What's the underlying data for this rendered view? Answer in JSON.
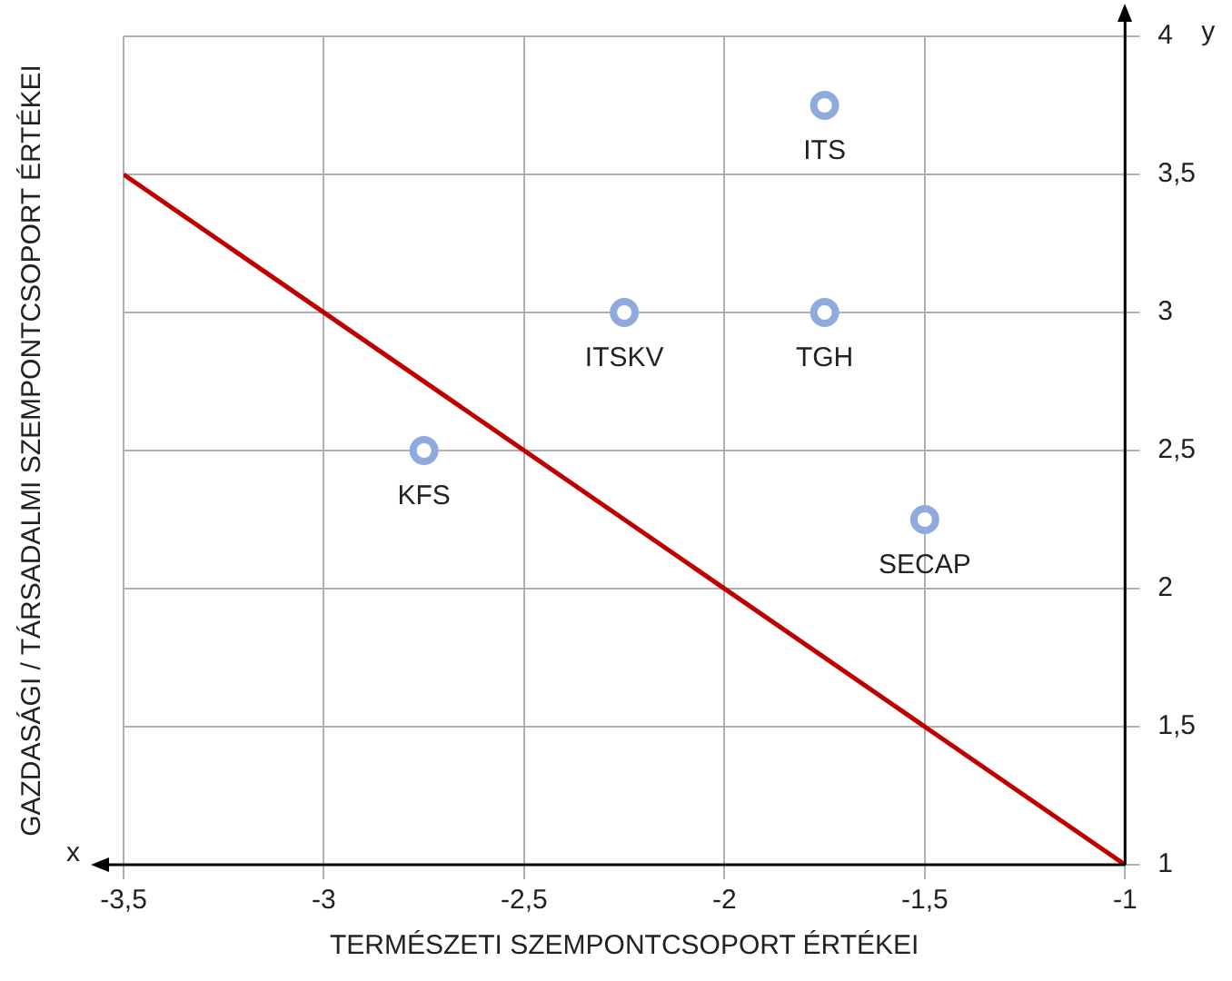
{
  "chart_data": {
    "type": "scatter",
    "xlabel": "TERMÉSZETI SZEMPONTCSOPORT ÉRTÉKEI",
    "ylabel": "GAZDASÁGI / TÁRSADALMI SZEMPONTCSOPORT ÉRTÉKEI",
    "xlim": [
      -3.5,
      -1
    ],
    "ylim": [
      1,
      4
    ],
    "xticks": [
      {
        "value": -3.5,
        "label": "-3,5"
      },
      -3,
      {
        "value": -2.5,
        "label": "-2,5"
      },
      -2,
      {
        "value": -1.5,
        "label": "-1,5"
      },
      -1
    ],
    "yticks": [
      1,
      {
        "value": 1.5,
        "label": "1,5"
      },
      2,
      {
        "value": 2.5,
        "label": "2,5"
      },
      3,
      {
        "value": 3.5,
        "label": "3,5"
      },
      4
    ],
    "grid": true,
    "legend": false,
    "series": [
      {
        "type": "scatter",
        "color": "#8faadc",
        "marker": "circle",
        "x": [
          -1.75,
          -2.25,
          -1.75,
          -2.75,
          -1.5
        ],
        "values": [
          3.75,
          3,
          3,
          2.5,
          2.25
        ]
      },
      {
        "type": "line",
        "color": "#c00000",
        "marker": "none",
        "line_style": "solid",
        "x": [
          -3.5,
          -1
        ],
        "values": [
          3.5,
          1
        ]
      }
    ],
    "annotations": [
      {
        "text": "ITS",
        "x": -1.75,
        "y": 3.75
      },
      {
        "text": "ITSKV",
        "x": -2.25,
        "y": 3
      },
      {
        "text": "TGH",
        "x": -1.75,
        "y": 3
      },
      {
        "text": "KFS",
        "x": -2.75,
        "y": 2.5
      },
      {
        "text": "SECAP",
        "x": -1.5,
        "y": 2.25
      },
      "x",
      "y"
    ]
  }
}
